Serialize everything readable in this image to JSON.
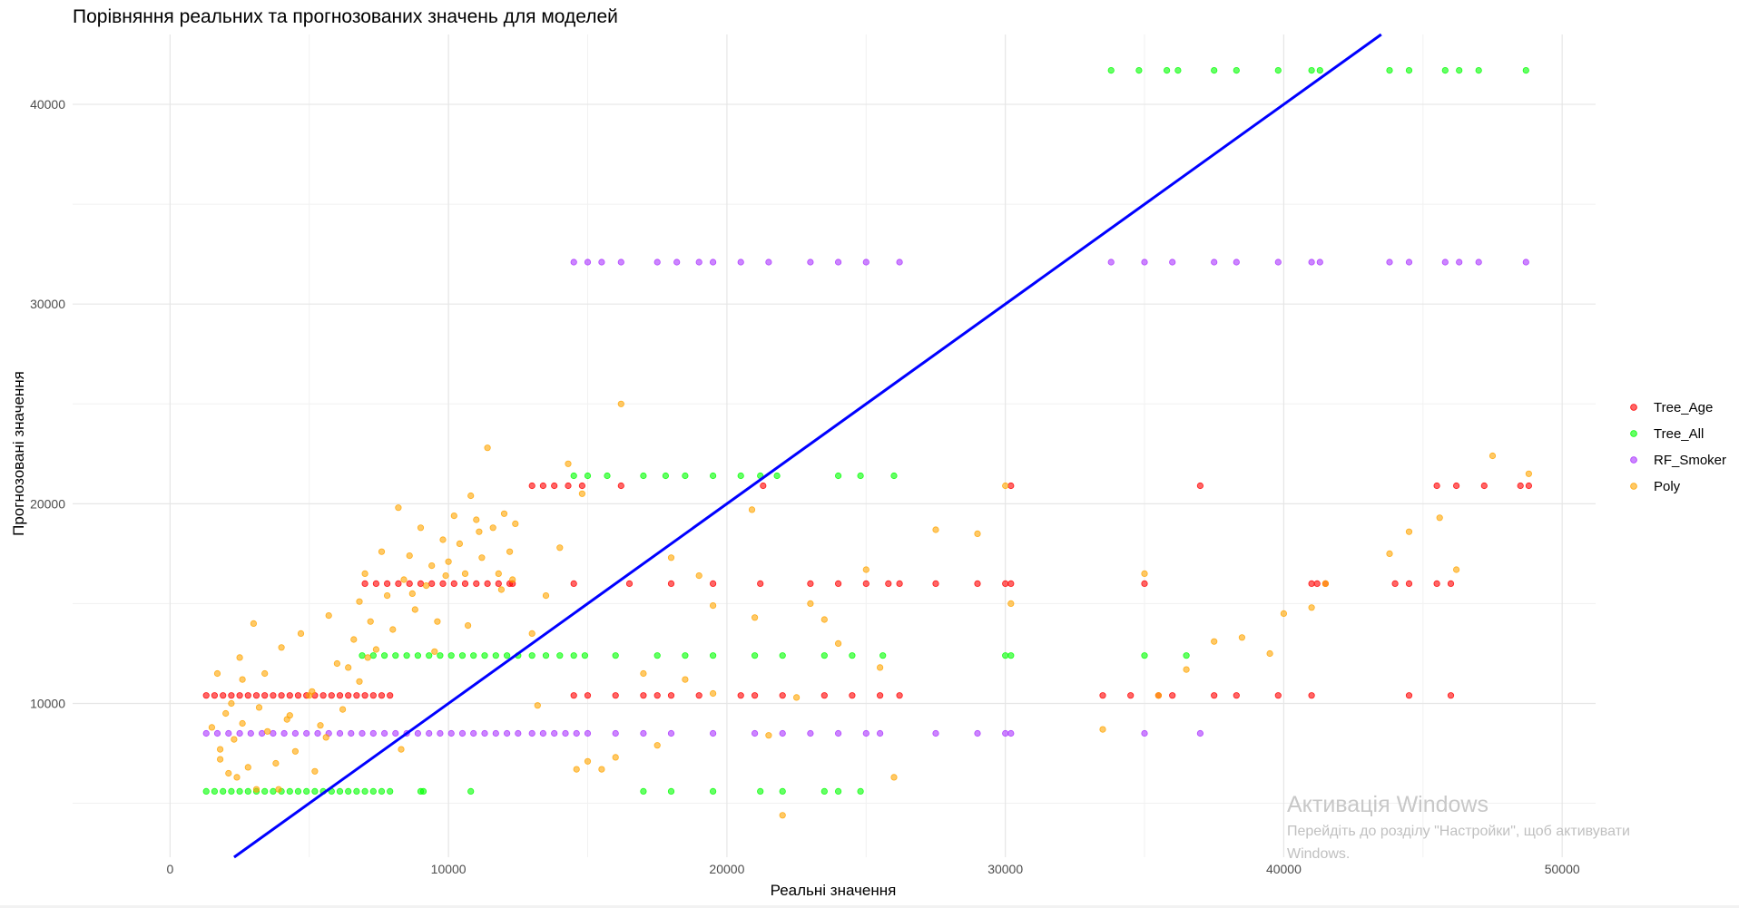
{
  "chart_data": {
    "type": "scatter",
    "title": "Порівняння реальних та прогнозованих значень для моделей",
    "xlabel": "Реальні значення",
    "ylabel": "Прогнозовані значення",
    "xlim": [
      -3500,
      51200
    ],
    "ylim": [
      2300,
      43500
    ],
    "x_ticks": [
      0,
      10000,
      20000,
      30000,
      40000,
      50000
    ],
    "y_ticks": [
      10000,
      20000,
      30000,
      40000
    ],
    "grid": true,
    "legend_position": "right",
    "reference_line": {
      "slope": 1,
      "intercept": 0,
      "color": "#0000ff"
    },
    "series": [
      {
        "name": "Tree_Age",
        "color": "#ff0000",
        "x": [
          1300,
          1600,
          1900,
          2200,
          2500,
          2800,
          3100,
          3400,
          3700,
          4000,
          4300,
          4600,
          4900,
          5200,
          5500,
          5800,
          6100,
          6400,
          6700,
          7000,
          7300,
          7600,
          7900,
          7000,
          7400,
          7800,
          8200,
          8600,
          9000,
          9400,
          9800,
          10200,
          10600,
          11000,
          11400,
          11800,
          12200,
          12300,
          13000,
          13400,
          13800,
          14300,
          14800,
          16200,
          21300,
          14500,
          16500,
          18000,
          19500,
          21200,
          23000,
          24000,
          25000,
          25800,
          26200,
          27500,
          29000,
          30000,
          30200,
          35000,
          41000,
          41200,
          41500,
          44000,
          44500,
          45500,
          46000,
          14500,
          15000,
          16000,
          17000,
          17500,
          18000,
          19000,
          20500,
          21000,
          22000,
          23500,
          24500,
          25500,
          26200,
          33500,
          34500,
          35500,
          36000,
          37500,
          38300,
          39800,
          41000,
          44500,
          46000,
          45500,
          46200,
          47200,
          48500,
          48800,
          37000,
          30200
        ],
        "y": [
          10400,
          10400,
          10400,
          10400,
          10400,
          10400,
          10400,
          10400,
          10400,
          10400,
          10400,
          10400,
          10400,
          10400,
          10400,
          10400,
          10400,
          10400,
          10400,
          10400,
          10400,
          10400,
          10400,
          16000,
          16000,
          16000,
          16000,
          16000,
          16000,
          16000,
          16000,
          16000,
          16000,
          16000,
          16000,
          16000,
          16000,
          16000,
          20900,
          20900,
          20900,
          20900,
          20900,
          20900,
          20900,
          16000,
          16000,
          16000,
          16000,
          16000,
          16000,
          16000,
          16000,
          16000,
          16000,
          16000,
          16000,
          16000,
          16000,
          16000,
          16000,
          16000,
          16000,
          16000,
          16000,
          16000,
          16000,
          10400,
          10400,
          10400,
          10400,
          10400,
          10400,
          10400,
          10400,
          10400,
          10400,
          10400,
          10400,
          10400,
          10400,
          10400,
          10400,
          10400,
          10400,
          10400,
          10400,
          10400,
          10400,
          10400,
          10400,
          20900,
          20900,
          20900,
          20900,
          20900,
          20900,
          20900
        ]
      },
      {
        "name": "Tree_All",
        "color": "#00ff00",
        "x": [
          1300,
          1600,
          1900,
          2200,
          2500,
          2800,
          3100,
          3400,
          3700,
          4000,
          4300,
          4600,
          4900,
          5200,
          5500,
          5800,
          6100,
          6400,
          6700,
          7000,
          7300,
          7600,
          7900,
          9000,
          10800,
          6900,
          7300,
          7700,
          8100,
          8500,
          8900,
          9300,
          9700,
          10100,
          10500,
          10900,
          11300,
          11700,
          12100,
          12500,
          13000,
          13500,
          14000,
          14500,
          14900,
          16000,
          17500,
          18500,
          19500,
          21000,
          22000,
          23500,
          24500,
          25600,
          30000,
          30200,
          35000,
          36500,
          14500,
          15000,
          15700,
          17000,
          17800,
          18500,
          19500,
          20500,
          21200,
          21800,
          24000,
          24800,
          26000,
          33800,
          34800,
          35800,
          36200,
          37500,
          38300,
          39800,
          41000,
          41300,
          43800,
          44500,
          45800,
          46300,
          47000,
          48700,
          9100,
          17000,
          18000,
          19500,
          21200,
          22000,
          23500,
          24000,
          24800
        ],
        "y": [
          5600,
          5600,
          5600,
          5600,
          5600,
          5600,
          5600,
          5600,
          5600,
          5600,
          5600,
          5600,
          5600,
          5600,
          5600,
          5600,
          5600,
          5600,
          5600,
          5600,
          5600,
          5600,
          5600,
          5600,
          5600,
          12400,
          12400,
          12400,
          12400,
          12400,
          12400,
          12400,
          12400,
          12400,
          12400,
          12400,
          12400,
          12400,
          12400,
          12400,
          12400,
          12400,
          12400,
          12400,
          12400,
          12400,
          12400,
          12400,
          12400,
          12400,
          12400,
          12400,
          12400,
          12400,
          12400,
          12400,
          12400,
          12400,
          21400,
          21400,
          21400,
          21400,
          21400,
          21400,
          21400,
          21400,
          21400,
          21400,
          21400,
          21400,
          21400,
          41700,
          41700,
          41700,
          41700,
          41700,
          41700,
          41700,
          41700,
          41700,
          41700,
          41700,
          41700,
          41700,
          41700,
          41700,
          5600,
          5600,
          5600,
          5600,
          5600,
          5600,
          5600,
          5600,
          5600
        ]
      },
      {
        "name": "RF_Smoker",
        "color": "#aa33ff",
        "x": [
          1300,
          1700,
          2100,
          2500,
          2900,
          3300,
          3700,
          4100,
          4500,
          4900,
          5300,
          5700,
          6100,
          6500,
          6900,
          7300,
          7700,
          8100,
          8500,
          8900,
          9300,
          9700,
          10100,
          10500,
          10900,
          11300,
          11700,
          12100,
          12500,
          13000,
          13400,
          13800,
          14200,
          14600,
          15000,
          16000,
          17000,
          18000,
          19500,
          21000,
          22000,
          23000,
          24000,
          25000,
          25500,
          27500,
          29000,
          30000,
          30200,
          35000,
          37000,
          14500,
          15000,
          15500,
          16200,
          17500,
          18200,
          19000,
          19500,
          20500,
          21500,
          23000,
          24000,
          25000,
          26200,
          33800,
          35000,
          36000,
          37500,
          38300,
          39800,
          41000,
          41300,
          43800,
          44500,
          45800,
          46300,
          47000,
          48700
        ],
        "y": [
          8500,
          8500,
          8500,
          8500,
          8500,
          8500,
          8500,
          8500,
          8500,
          8500,
          8500,
          8500,
          8500,
          8500,
          8500,
          8500,
          8500,
          8500,
          8500,
          8500,
          8500,
          8500,
          8500,
          8500,
          8500,
          8500,
          8500,
          8500,
          8500,
          8500,
          8500,
          8500,
          8500,
          8500,
          8500,
          8500,
          8500,
          8500,
          8500,
          8500,
          8500,
          8500,
          8500,
          8500,
          8500,
          8500,
          8500,
          8500,
          8500,
          8500,
          8500,
          32100,
          32100,
          32100,
          32100,
          32100,
          32100,
          32100,
          32100,
          32100,
          32100,
          32100,
          32100,
          32100,
          32100,
          32100,
          32100,
          32100,
          32100,
          32100,
          32100,
          32100,
          32100,
          32100,
          32100,
          32100,
          32100,
          32100,
          32100
        ]
      },
      {
        "name": "Poly",
        "color": "#ffa500",
        "x": [
          1500,
          1700,
          1800,
          2000,
          2100,
          2200,
          2300,
          2500,
          2600,
          2800,
          3000,
          3200,
          3400,
          3500,
          3800,
          4000,
          4200,
          4500,
          4700,
          5000,
          5200,
          5400,
          5700,
          6000,
          6200,
          6400,
          6600,
          6800,
          7000,
          7200,
          7400,
          7600,
          7800,
          8000,
          8200,
          8400,
          8600,
          8800,
          9000,
          9200,
          9400,
          9600,
          9800,
          10000,
          10200,
          10400,
          10600,
          10800,
          11000,
          11200,
          11400,
          11600,
          11800,
          12000,
          12200,
          12400,
          13000,
          13500,
          14000,
          14300,
          14800,
          15000,
          15500,
          16000,
          16200,
          17000,
          17500,
          18000,
          18500,
          19000,
          19500,
          19500,
          21000,
          21500,
          22000,
          22500,
          23000,
          23500,
          24000,
          25000,
          25500,
          26000,
          27500,
          29000,
          30000,
          30200,
          33500,
          35000,
          35500,
          36500,
          37500,
          38500,
          39500,
          40000,
          41000,
          41500,
          43800,
          44500,
          45600,
          46200,
          47500,
          48800,
          1800,
          2400,
          3100,
          4300,
          5600,
          6800,
          8300,
          9500,
          10700,
          11900,
          13200,
          2600,
          3900,
          5100,
          7100,
          8700,
          9900,
          11100,
          12300,
          14600,
          20900
        ],
        "y": [
          8800,
          11500,
          7200,
          9500,
          6500,
          10000,
          8200,
          12300,
          9000,
          6800,
          14000,
          9800,
          11500,
          8600,
          7000,
          12800,
          9200,
          7600,
          13500,
          10400,
          6600,
          8900,
          14400,
          12000,
          9700,
          11800,
          13200,
          15100,
          16500,
          14100,
          12700,
          17600,
          15400,
          13700,
          19800,
          16200,
          17400,
          14700,
          18800,
          15900,
          16900,
          14100,
          18200,
          17100,
          19400,
          18000,
          16500,
          20400,
          19200,
          17300,
          22800,
          18800,
          16500,
          19500,
          17600,
          19000,
          13500,
          15400,
          17800,
          22000,
          20500,
          7100,
          6700,
          7300,
          25000,
          11500,
          7900,
          17300,
          11200,
          16400,
          10500,
          14900,
          14300,
          8400,
          4400,
          10300,
          15000,
          14200,
          13000,
          16700,
          11800,
          6300,
          18700,
          18500,
          20900,
          15000,
          8700,
          16500,
          10400,
          11700,
          13100,
          13300,
          12500,
          14500,
          14800,
          16000,
          17500,
          18600,
          19300,
          16700,
          22400,
          21500,
          7700,
          6300,
          5700,
          9400,
          8300,
          11100,
          7700,
          12600,
          13900,
          15700,
          9900,
          11200,
          5700,
          10600,
          12300,
          15500,
          16400,
          18600,
          16200,
          6700,
          19700
        ]
      }
    ]
  },
  "watermark": {
    "title": "Активація Windows",
    "line1": "Перейдіть до розділу \"Настройки\", щоб активувати",
    "line2": "Windows."
  }
}
